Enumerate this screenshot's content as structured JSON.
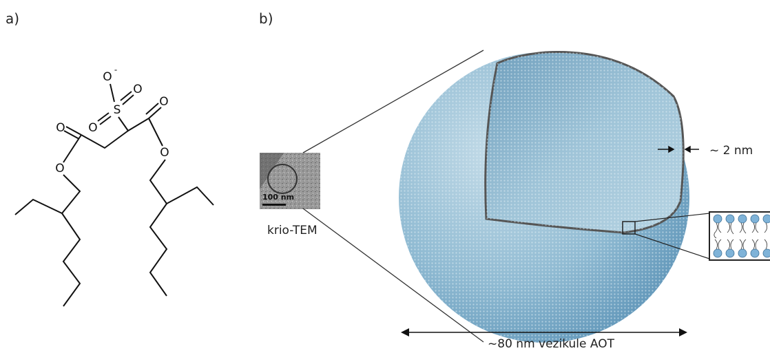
{
  "panel_a": {
    "label": "a)",
    "molecule": {
      "atoms": [
        "O",
        "S",
        "O",
        "O",
        "O",
        "O",
        "O",
        "O"
      ],
      "charge": "-"
    }
  },
  "panel_b": {
    "label": "b)",
    "tem_scale": "100 nm",
    "tem_caption": "krio-TEM",
    "thickness": "~ 2 nm",
    "diameter": "~80 nm vezikule AOT"
  }
}
